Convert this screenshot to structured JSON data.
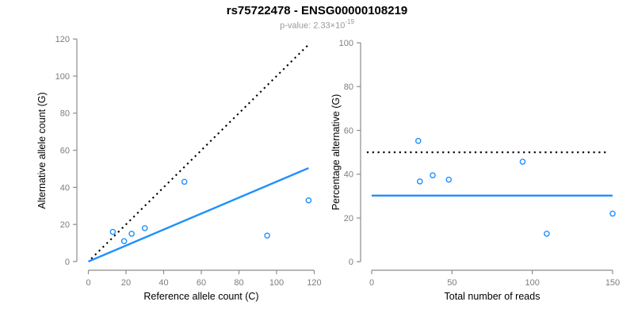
{
  "header": {
    "title": "rs75722478 - ENSG00000108219",
    "p_value_text": "p-value: 2.33×10",
    "p_value_exponent": "-19"
  },
  "colors": {
    "accent": "#1E90FF",
    "identity": "#000000",
    "axis": "#8c8c8c",
    "tick_label": "#7d7d7d",
    "axis_title": "#000000",
    "subtitle": "#999999"
  },
  "chart_data": [
    {
      "type": "scatter",
      "xlabel": "Reference allele count (C)",
      "ylabel": "Alternative allele count (G)",
      "xlim": [
        0,
        120
      ],
      "ylim": [
        0,
        120
      ],
      "xticks": [
        0,
        20,
        40,
        60,
        80,
        100,
        120
      ],
      "yticks": [
        0,
        20,
        40,
        60,
        80,
        100,
        120
      ],
      "grid": false,
      "legend": null,
      "points": [
        [
          13,
          16
        ],
        [
          19,
          11
        ],
        [
          23,
          15
        ],
        [
          30,
          18
        ],
        [
          51,
          43
        ],
        [
          95,
          14
        ],
        [
          117,
          33
        ]
      ],
      "lines": [
        {
          "name": "identity-line",
          "style": "dotted",
          "color": "#000000",
          "x1": 1.5,
          "y1": 1.5,
          "x2": 117.5,
          "y2": 117.5
        },
        {
          "name": "fit-line",
          "style": "solid",
          "color": "#1E90FF",
          "x1": 0,
          "y1": 0,
          "x2": 117,
          "y2": 50.4
        }
      ]
    },
    {
      "type": "scatter",
      "xlabel": "Total number of reads",
      "ylabel": "Percentage alternative (G)",
      "xlim": [
        0,
        150
      ],
      "ylim": [
        0,
        100
      ],
      "xticks": [
        0,
        50,
        100,
        150
      ],
      "yticks": [
        0,
        20,
        40,
        60,
        80,
        100
      ],
      "grid": false,
      "legend": null,
      "points": [
        [
          29,
          55.2
        ],
        [
          30,
          36.7
        ],
        [
          38,
          39.5
        ],
        [
          48,
          37.5
        ],
        [
          94,
          45.7
        ],
        [
          109,
          12.8
        ],
        [
          150,
          22
        ]
      ],
      "lines": [
        {
          "name": "expected-50pct-line",
          "style": "dotted",
          "color": "#000000",
          "x1": -3,
          "y1": 50,
          "x2": 148,
          "y2": 50
        },
        {
          "name": "observed-ratio-line",
          "style": "solid",
          "color": "#1E90FF",
          "x1": 0,
          "y1": 30.2,
          "x2": 150,
          "y2": 30.2
        }
      ]
    }
  ]
}
